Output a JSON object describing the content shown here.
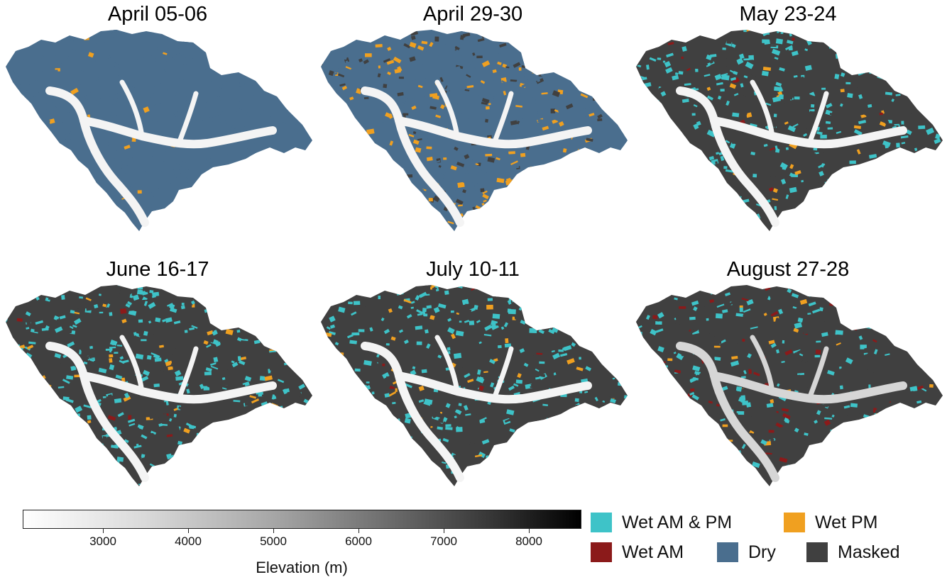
{
  "panels": [
    {
      "title": "April 05-06",
      "scheme": "dry"
    },
    {
      "title": "April 29-30",
      "scheme": "pm"
    },
    {
      "title": "May 23-24",
      "scheme": "wet"
    },
    {
      "title": "June 16-17",
      "scheme": "wet"
    },
    {
      "title": "July 10-11",
      "scheme": "wet"
    },
    {
      "title": "August 27-28",
      "scheme": "late"
    }
  ],
  "colorbar": {
    "title": "Elevation (m)",
    "ticks": [
      "3000",
      "4000",
      "5000",
      "6000",
      "7000",
      "8000"
    ],
    "min_color": "#ffffff",
    "max_color": "#000000"
  },
  "legend": [
    {
      "label": "Wet AM & PM",
      "color": "#3ec3c8"
    },
    {
      "label": "Wet PM",
      "color": "#f0a020"
    },
    {
      "label": "Wet AM",
      "color": "#8b1a1a"
    },
    {
      "label": "Dry",
      "color": "#4a6e8e"
    },
    {
      "label": "Masked",
      "color": "#404040"
    }
  ]
}
